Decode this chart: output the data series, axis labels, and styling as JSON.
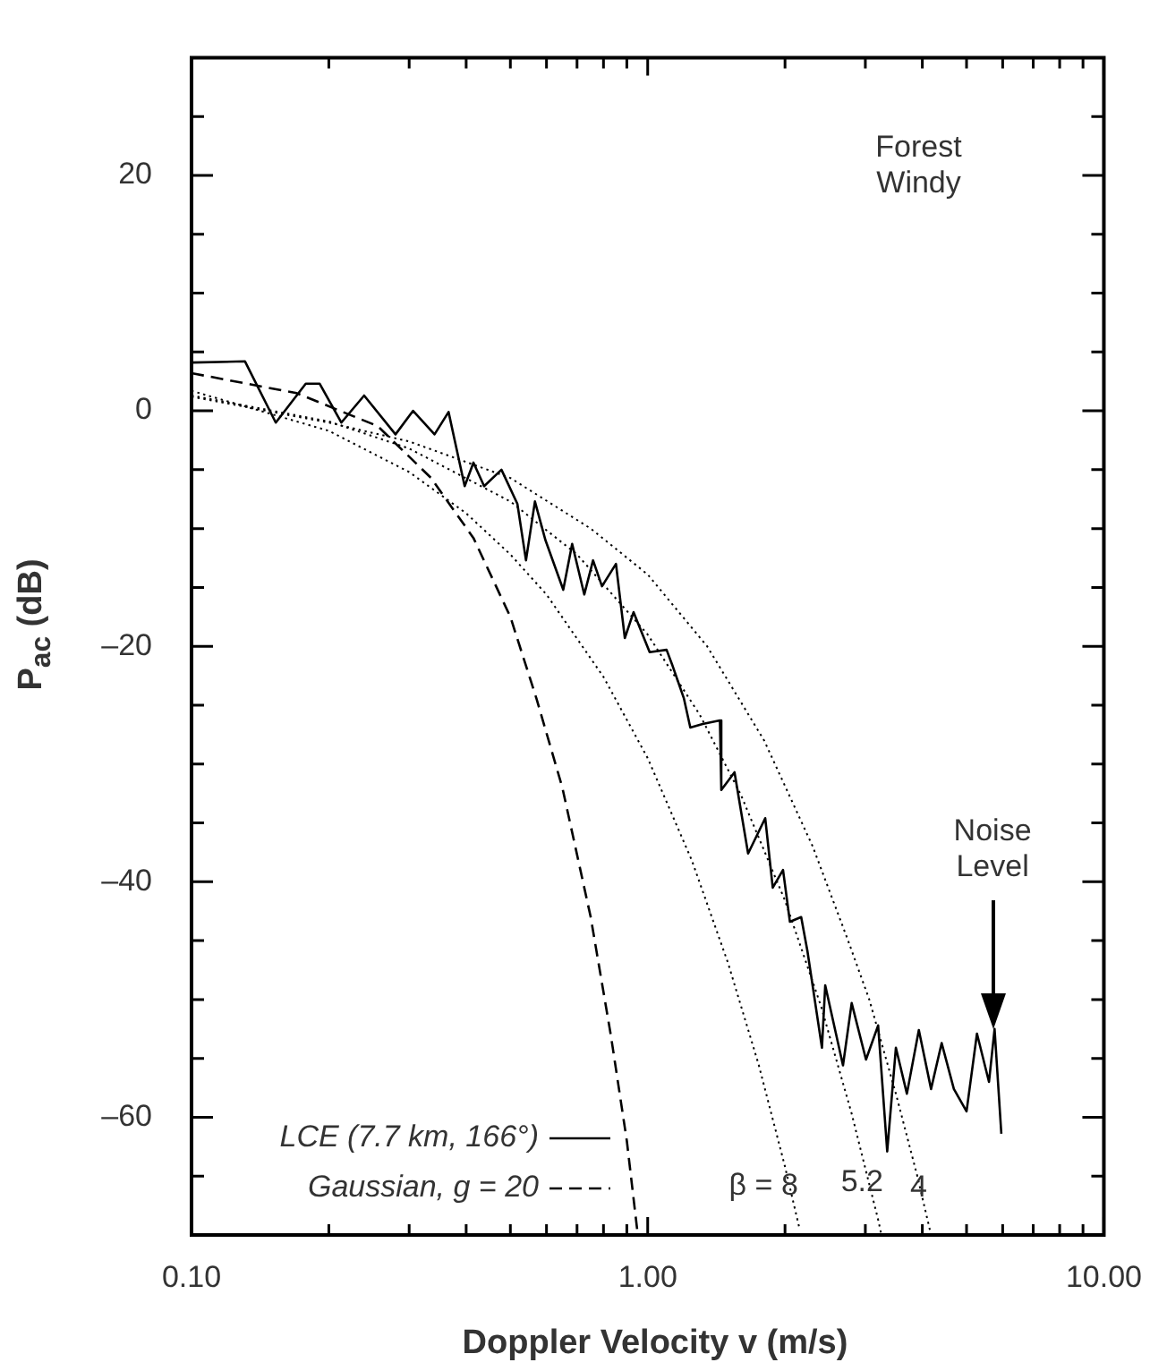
{
  "chart_data": {
    "type": "line",
    "xlabel": "Doppler Velocity v (m/s)",
    "ylabel": "P$_{ac}$ (dB)",
    "log": "x",
    "xlim": [
      0.1,
      10
    ],
    "ylim": [
      -70,
      30
    ],
    "xticks": [
      {
        "value": 0.1,
        "label": "0.10"
      },
      {
        "value": 0.2,
        "label": null
      },
      {
        "value": 0.3,
        "label": null
      },
      {
        "value": 0.4,
        "label": null
      },
      {
        "value": 0.5,
        "label": null
      },
      {
        "value": 0.6,
        "label": null
      },
      {
        "value": 0.7,
        "label": null
      },
      {
        "value": 0.8,
        "label": null
      },
      {
        "value": 0.9,
        "label": null
      },
      {
        "value": 1,
        "label": "1.00"
      },
      {
        "value": 2,
        "label": null
      },
      {
        "value": 3,
        "label": null
      },
      {
        "value": 4,
        "label": null
      },
      {
        "value": 5,
        "label": null
      },
      {
        "value": 6,
        "label": null
      },
      {
        "value": 7,
        "label": null
      },
      {
        "value": 8,
        "label": null
      },
      {
        "value": 9,
        "label": null
      },
      {
        "value": 10,
        "label": "10.00"
      }
    ],
    "yticks": [
      {
        "value": -65,
        "label": null
      },
      {
        "value": -60,
        "label": "–60"
      },
      {
        "value": -55,
        "label": null
      },
      {
        "value": -50,
        "label": null
      },
      {
        "value": -45,
        "label": null
      },
      {
        "value": -40,
        "label": "–40"
      },
      {
        "value": -35,
        "label": null
      },
      {
        "value": -30,
        "label": null
      },
      {
        "value": -25,
        "label": null
      },
      {
        "value": -20,
        "label": "–20"
      },
      {
        "value": -15,
        "label": null
      },
      {
        "value": -10,
        "label": null
      },
      {
        "value": -5,
        "label": null
      },
      {
        "value": 0,
        "label": "0"
      },
      {
        "value": 5,
        "label": null
      },
      {
        "value": 10,
        "label": null
      },
      {
        "value": 15,
        "label": null
      },
      {
        "value": 20,
        "label": "20"
      },
      {
        "value": 25,
        "label": null
      }
    ],
    "legend": "bottom left",
    "marker": "none",
    "series": [
      {
        "name": "LCE (7.7 km, 166°)",
        "color": "#000000",
        "line_style": "solid",
        "x": [
          0.1,
          0.131,
          0.153,
          0.178,
          0.191,
          0.213,
          0.239,
          0.28,
          0.306,
          0.341,
          0.366,
          0.397,
          0.415,
          0.438,
          0.478,
          0.518,
          0.541,
          0.566,
          0.597,
          0.653,
          0.683,
          0.726,
          0.759,
          0.794,
          0.852,
          0.891,
          0.931,
          1.01,
          1.1,
          1.13,
          1.2,
          1.24,
          1.32,
          1.44,
          1.45,
          1.55,
          1.66,
          1.81,
          1.88,
          1.98,
          2.05,
          2.17,
          2.24,
          2.41,
          2.45,
          2.68,
          2.8,
          3.01,
          3.2,
          3.35,
          3.5,
          3.7,
          3.93,
          4.18,
          4.41,
          4.69,
          5.0,
          5.27,
          5.6,
          5.76,
          5.96
        ],
        "values": [
          4.1,
          4.2,
          -1,
          2.3,
          2.3,
          -1,
          1.3,
          -2,
          0,
          -2,
          -0.1,
          -6.4,
          -4.4,
          -6.4,
          -5,
          -7.9,
          -12.7,
          -7.7,
          -11,
          -15.2,
          -11.3,
          -15.6,
          -12.7,
          -14.9,
          -13,
          -19.3,
          -17.1,
          -20.5,
          -20.3,
          -21.5,
          -24.4,
          -26.9,
          -26.6,
          -26.3,
          -32.2,
          -30.7,
          -37.6,
          -34.6,
          -40.5,
          -39,
          -43.4,
          -43,
          -45.9,
          -54.1,
          -48.8,
          -55.6,
          -50.3,
          -55.1,
          -52.2,
          -62.9,
          -54.1,
          -58,
          -52.6,
          -57.6,
          -53.7,
          -57.6,
          -59.5,
          -52.9,
          -57,
          -52.5,
          -61.4
        ]
      },
      {
        "name": "Gaussian, g = 20",
        "color": "#000000",
        "line_style": "dashed",
        "x": [
          0.1,
          0.17,
          0.256,
          0.335,
          0.415,
          0.5,
          0.57,
          0.65,
          0.75,
          0.83,
          0.9,
          0.95
        ],
        "values": [
          3.2,
          1.5,
          -1.3,
          -5.7,
          -10.8,
          -17.5,
          -24.4,
          -32,
          -43,
          -53,
          -62,
          -69.8
        ]
      },
      {
        "color": "#000000",
        "line_style": "dotted",
        "x": [
          0.1,
          0.2,
          0.3,
          0.4,
          0.5,
          0.6,
          0.8,
          1.0,
          1.25,
          1.5,
          1.75,
          2.0,
          2.15
        ],
        "values": [
          1.7,
          -1.7,
          -5.2,
          -8.7,
          -12.2,
          -15.6,
          -22.6,
          -29.5,
          -38.2,
          -46.9,
          -55.5,
          -64.2,
          -69.4
        ]
      },
      {
        "color": "#000000",
        "line_style": "dotted",
        "x": [
          0.1,
          0.2,
          0.3,
          0.5,
          0.7,
          1.0,
          1.3,
          1.6,
          2.0,
          2.4,
          2.8,
          3.2,
          3.25
        ],
        "values": [
          1.3,
          -0.9,
          -3.2,
          -7.7,
          -12.2,
          -19,
          -25.8,
          -32.6,
          -41.6,
          -50.6,
          -59.7,
          -68.7,
          -69.9
        ]
      },
      {
        "color": "#000000",
        "line_style": "dotted",
        "x": [
          0.1,
          0.2,
          0.3,
          0.5,
          0.75,
          1.0,
          1.35,
          1.8,
          2.3,
          2.75,
          3.06,
          3.5,
          3.9,
          4.18
        ],
        "values": [
          1.2,
          -1,
          -2.6,
          -5.7,
          -10,
          -13.9,
          -20,
          -28,
          -37,
          -45,
          -50,
          -58,
          -65,
          -70
        ]
      }
    ],
    "annotations": [
      "Forest\nWindy",
      "Noise\nLevel",
      "β = 8",
      "5.2",
      "4"
    ]
  }
}
